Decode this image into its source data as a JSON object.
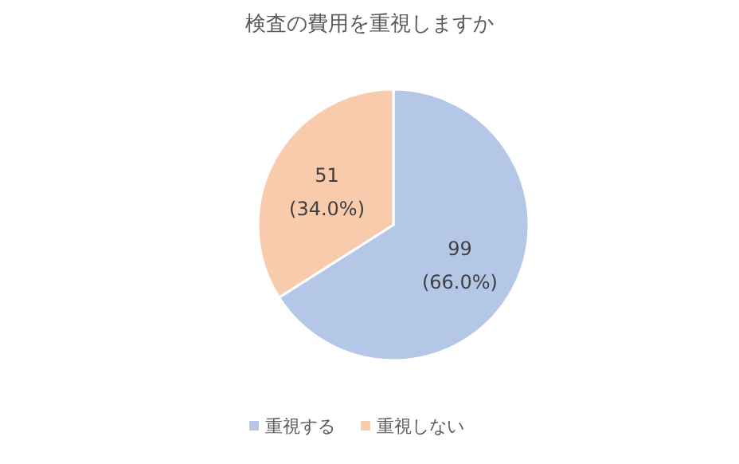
{
  "chart_data": {
    "type": "pie",
    "title": "検査の費用を重視しますか",
    "categories": [
      "重視する",
      "重視しない"
    ],
    "values": [
      99,
      51
    ],
    "colors": [
      "#b4c7e7",
      "#f8cbad"
    ],
    "value_labels": [
      "99\n(66.0%)",
      "51\n(34.0%)"
    ],
    "legend": "bottom"
  }
}
